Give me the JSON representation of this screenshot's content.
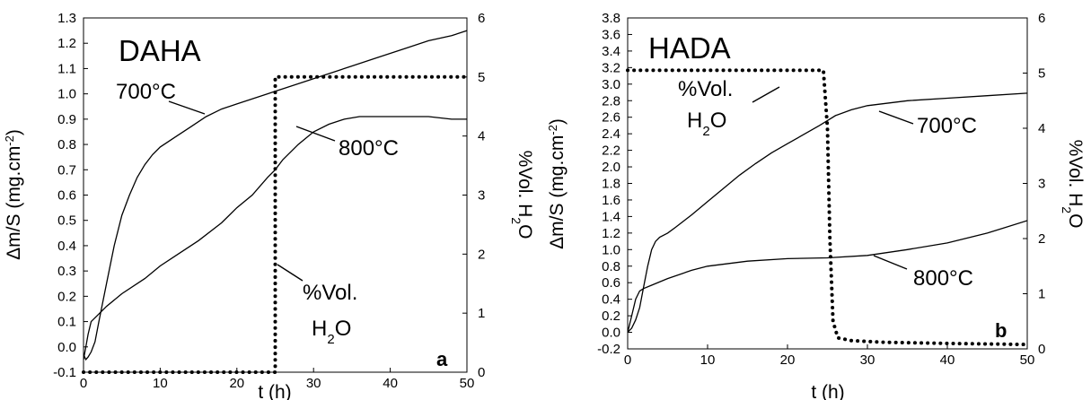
{
  "chart_data": [
    {
      "type": "line",
      "title": "DAHA",
      "panel_label": "a",
      "xlabel": "t (h)",
      "ylabel_parts": [
        "Δm/S (mg.cm",
        "-2",
        ")"
      ],
      "y2label_parts": [
        "%Vol. H",
        "2",
        "O"
      ],
      "xlim": [
        0,
        50
      ],
      "ylim": [
        -0.1,
        1.3
      ],
      "y2lim": [
        0,
        6
      ],
      "x_ticks": [
        "0",
        "10",
        "20",
        "30",
        "40",
        "50"
      ],
      "y_ticks": [
        "-0.1",
        "0.0",
        "0.1",
        "0.2",
        "0.3",
        "0.4",
        "0.5",
        "0.6",
        "0.7",
        "0.8",
        "0.9",
        "1.0",
        "1.1",
        "1.2",
        "1.3"
      ],
      "y2_ticks": [
        "0",
        "1",
        "2",
        "3",
        "4",
        "5",
        "6"
      ],
      "series": [
        {
          "name": "700°C",
          "axis": "left",
          "style": "solid",
          "x": [
            0,
            0.3,
            0.6,
            1,
            1.5,
            2,
            3,
            4,
            5,
            6,
            7,
            8,
            9,
            10,
            12,
            14,
            16,
            18,
            20,
            22,
            24,
            25,
            26,
            28,
            30,
            32,
            35,
            38,
            40,
            42,
            45,
            48,
            50
          ],
          "y": [
            -0.03,
            -0.05,
            -0.04,
            -0.02,
            0.02,
            0.1,
            0.25,
            0.4,
            0.52,
            0.6,
            0.67,
            0.72,
            0.76,
            0.79,
            0.83,
            0.87,
            0.91,
            0.94,
            0.96,
            0.98,
            1.0,
            1.01,
            1.02,
            1.04,
            1.06,
            1.08,
            1.11,
            1.14,
            1.16,
            1.18,
            1.21,
            1.23,
            1.25
          ]
        },
        {
          "name": "800°C",
          "axis": "left",
          "style": "solid",
          "x": [
            0,
            0.3,
            0.6,
            1,
            2,
            3,
            5,
            8,
            10,
            12,
            15,
            18,
            20,
            22,
            24,
            25,
            26,
            28,
            30,
            32,
            34,
            36,
            38,
            40,
            42,
            45,
            48,
            50
          ],
          "y": [
            -0.05,
            0.0,
            0.05,
            0.1,
            0.13,
            0.16,
            0.21,
            0.27,
            0.32,
            0.36,
            0.42,
            0.49,
            0.55,
            0.6,
            0.67,
            0.7,
            0.74,
            0.8,
            0.85,
            0.88,
            0.9,
            0.91,
            0.91,
            0.91,
            0.91,
            0.91,
            0.9,
            0.9
          ]
        },
        {
          "name": "%Vol. H2O",
          "axis": "right",
          "style": "dotted",
          "x": [
            0,
            25,
            25,
            50
          ],
          "y": [
            0,
            0,
            5,
            5
          ]
        }
      ],
      "annotations": [
        {
          "text": "700°C",
          "series": "700°C"
        },
        {
          "text": "800°C",
          "series": "800°C"
        },
        {
          "text_parts": [
            "%Vol.",
            "H",
            "2",
            "O"
          ],
          "series": "%Vol. H2O"
        }
      ]
    },
    {
      "type": "line",
      "title": "HADA",
      "panel_label": "b",
      "xlabel": "t (h)",
      "ylabel_parts": [
        "Δm/S (mg.cm",
        "-2",
        ")"
      ],
      "y2label_parts": [
        "%Vol. H",
        "2",
        "O"
      ],
      "xlim": [
        0,
        50
      ],
      "ylim": [
        -0.2,
        3.8
      ],
      "y2lim": [
        0,
        6
      ],
      "x_ticks": [
        "0",
        "10",
        "20",
        "30",
        "40",
        "50"
      ],
      "y_ticks": [
        "-0.2",
        "0.0",
        "0.2",
        "0.4",
        "0.6",
        "0.8",
        "1.0",
        "1.2",
        "1.4",
        "1.6",
        "1.8",
        "2.0",
        "2.2",
        "2.4",
        "2.6",
        "2.8",
        "3.0",
        "3.2",
        "3.4",
        "3.6",
        "3.8"
      ],
      "y2_ticks": [
        "0",
        "1",
        "2",
        "3",
        "4",
        "5",
        "6"
      ],
      "series": [
        {
          "name": "700°C",
          "axis": "left",
          "style": "solid",
          "x": [
            0,
            0.5,
            1,
            1.5,
            2,
            2.5,
            3,
            3.5,
            4,
            5,
            6,
            8,
            10,
            12,
            14,
            16,
            18,
            20,
            22,
            24,
            25,
            26,
            28,
            30,
            35,
            40,
            45,
            50
          ],
          "y": [
            0.0,
            0.05,
            0.15,
            0.3,
            0.55,
            0.8,
            1.0,
            1.1,
            1.15,
            1.2,
            1.27,
            1.42,
            1.58,
            1.74,
            1.9,
            2.04,
            2.17,
            2.28,
            2.39,
            2.5,
            2.56,
            2.62,
            2.69,
            2.74,
            2.8,
            2.83,
            2.86,
            2.89
          ]
        },
        {
          "name": "800°C",
          "axis": "left",
          "style": "solid",
          "x": [
            0,
            0.5,
            1,
            1.5,
            2,
            3,
            5,
            8,
            10,
            15,
            20,
            25,
            30,
            35,
            40,
            45,
            50
          ],
          "y": [
            0.0,
            0.2,
            0.4,
            0.5,
            0.53,
            0.57,
            0.65,
            0.75,
            0.8,
            0.86,
            0.89,
            0.9,
            0.93,
            1.0,
            1.08,
            1.2,
            1.35
          ]
        },
        {
          "name": "%Vol. H2O",
          "axis": "right",
          "style": "dotted",
          "x": [
            0,
            24.5,
            25,
            25.3,
            25.7,
            26.3,
            28,
            32,
            40,
            50
          ],
          "y": [
            5.05,
            5.05,
            4.0,
            2.0,
            0.5,
            0.2,
            0.15,
            0.12,
            0.1,
            0.08
          ]
        }
      ],
      "annotations": [
        {
          "text": "700°C",
          "series": "700°C"
        },
        {
          "text": "800°C",
          "series": "800°C"
        },
        {
          "text_parts": [
            "%Vol.",
            "H",
            "2",
            "O"
          ],
          "series": "%Vol. H2O"
        }
      ]
    }
  ]
}
